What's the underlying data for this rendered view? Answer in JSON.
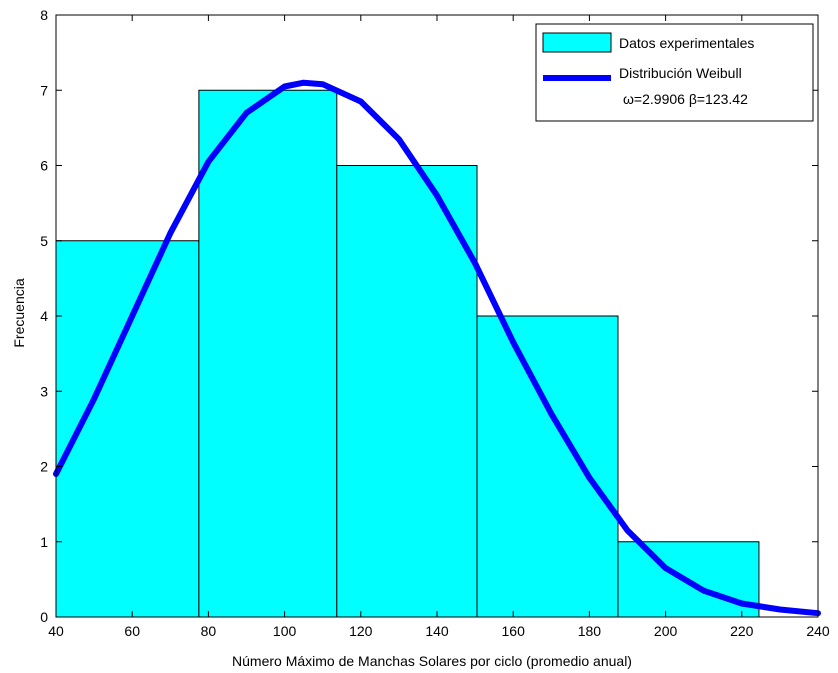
{
  "chart_data": {
    "type": "bar",
    "title": "",
    "xlabel": "Número Máximo de Manchas Solares por ciclo (promedio anual)",
    "ylabel": "Frecuencia",
    "xlim": [
      40,
      240
    ],
    "ylim": [
      0,
      8
    ],
    "xticks": [
      40,
      60,
      80,
      100,
      120,
      140,
      160,
      180,
      200,
      220,
      240
    ],
    "yticks": [
      0,
      1,
      2,
      3,
      4,
      5,
      6,
      7,
      8
    ],
    "grid": false,
    "legend_position": "top-right",
    "bar_color": "#00ffff",
    "curve_color": "#0000ff",
    "histogram": {
      "name": "Datos experimentales",
      "bins": [
        {
          "x0": 40.0,
          "x1": 77.5,
          "count": 5
        },
        {
          "x0": 77.5,
          "x1": 113.7,
          "count": 7
        },
        {
          "x0": 113.7,
          "x1": 150.5,
          "count": 6
        },
        {
          "x0": 150.5,
          "x1": 187.5,
          "count": 4
        },
        {
          "x0": 187.5,
          "x1": 224.5,
          "count": 1
        }
      ]
    },
    "curve": {
      "name": "Distribución Weibull",
      "params_label": "ω=2.9906 β=123.42",
      "x": [
        40,
        50,
        60,
        70,
        80,
        90,
        100,
        105,
        110,
        120,
        130,
        140,
        150,
        160,
        170,
        180,
        190,
        200,
        210,
        220,
        230,
        240
      ],
      "y": [
        1.9,
        2.9,
        4.0,
        5.1,
        6.05,
        6.7,
        7.05,
        7.1,
        7.08,
        6.85,
        6.35,
        5.6,
        4.7,
        3.65,
        2.7,
        1.85,
        1.15,
        0.65,
        0.35,
        0.18,
        0.1,
        0.05
      ]
    }
  }
}
